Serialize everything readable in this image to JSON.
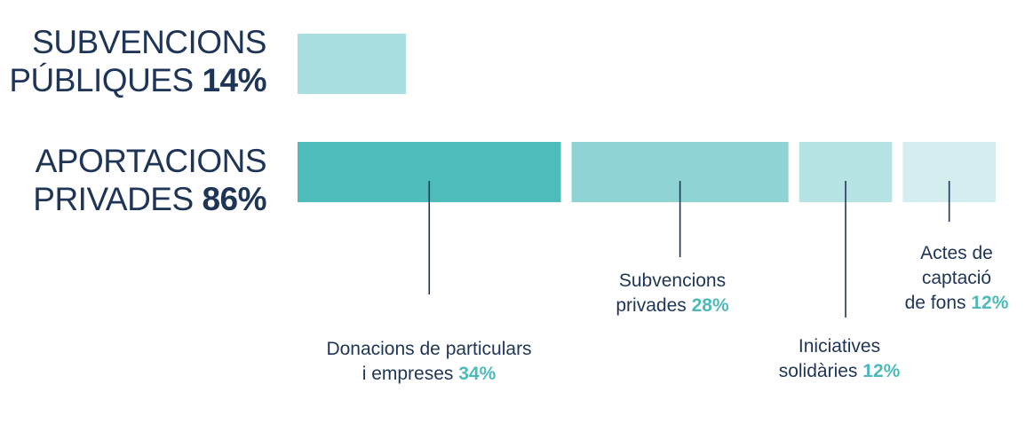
{
  "chart_data": {
    "type": "bar",
    "rows": [
      {
        "name_lines": [
          "SUBVENCIONS",
          "PÚBLIQUES"
        ],
        "pct_label": "14%",
        "value": 14,
        "segments": [
          {
            "value": 14,
            "color": "#a9dfe0"
          }
        ]
      },
      {
        "name_lines": [
          "APORTACIONS",
          "PRIVADES"
        ],
        "pct_label": "86%",
        "value": 86,
        "segments": [
          {
            "name_lines": [
              "Donacions de particulars",
              "i empreses"
            ],
            "pct_label": "34%",
            "value": 34,
            "color": "#4fbcbc"
          },
          {
            "name_lines": [
              "Subvencions",
              "privades"
            ],
            "pct_label": "28%",
            "value": 28,
            "color": "#8fd4d4"
          },
          {
            "name_lines": [
              "Iniciatives",
              "solidàries"
            ],
            "pct_label": "12%",
            "value": 12,
            "color": "#b6e4e5"
          },
          {
            "name_lines": [
              "Actes de",
              "captació",
              "de fons"
            ],
            "pct_label": "12%",
            "value": 12,
            "color": "#d4eeef"
          }
        ]
      }
    ],
    "colors": {
      "text": "#1f3557",
      "accent": "#4fb9b9",
      "leader": "#1f3557"
    }
  }
}
